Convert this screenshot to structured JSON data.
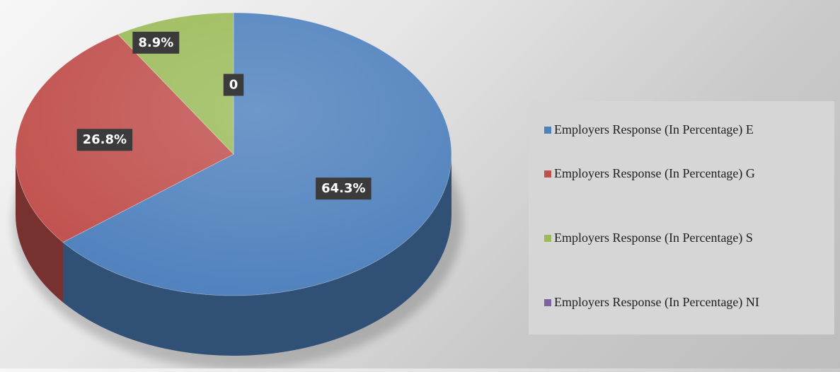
{
  "chart_data": {
    "type": "pie",
    "title": "",
    "categories": [
      "Employers Response (In Percentage) E",
      "Employers Response (In Percentage) G",
      "Employers Response (In Percentage) S",
      "Employers Response (In Percentage) NI"
    ],
    "values": [
      64.3,
      26.8,
      8.9,
      0
    ],
    "data_labels": [
      "64.3%",
      "26.8%",
      "8.9%",
      "0"
    ],
    "colors": [
      "#4f81bd",
      "#c0504d",
      "#9bbb59",
      "#8064a2"
    ],
    "style": "3d-pie",
    "legend_position": "right"
  }
}
